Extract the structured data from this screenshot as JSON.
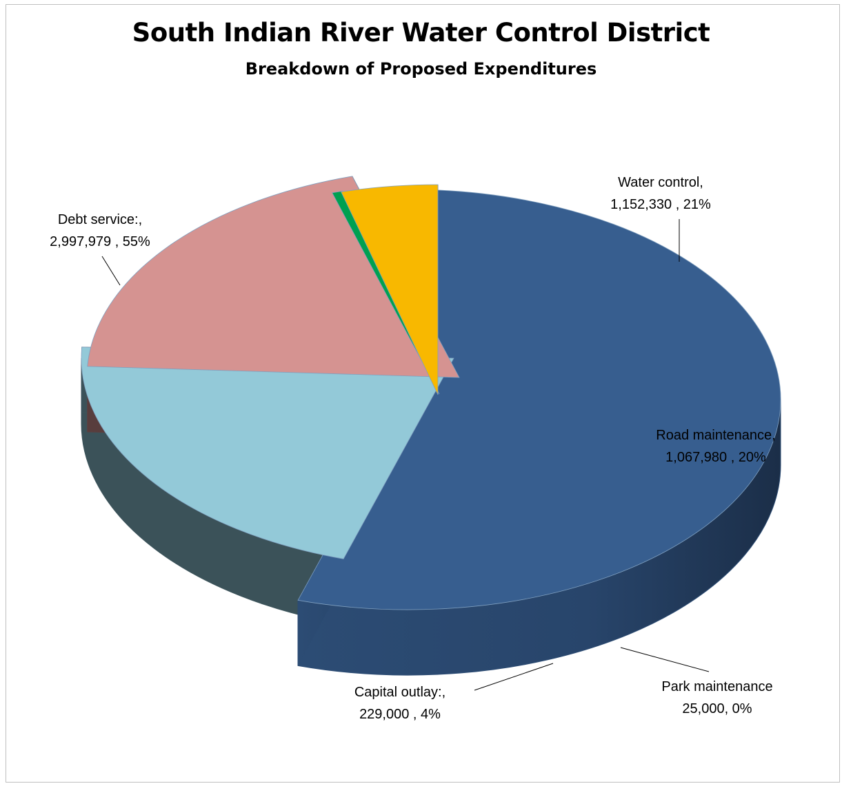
{
  "chart_data": {
    "type": "pie",
    "title": "South Indian River Water Control District",
    "subtitle": "Breakdown of Proposed  Expenditures",
    "style": "3d-exploded",
    "slices": [
      {
        "name": "Debt service:",
        "value": 2997979,
        "percent": 55,
        "color": "#375e8f",
        "label_line1": "Debt service:,",
        "label_line2": "2,997,979 , 55%"
      },
      {
        "name": "Water control",
        "value": 1152330,
        "percent": 21,
        "color": "#93c9d8",
        "label_line1": "Water control,",
        "label_line2": "1,152,330 , 21%"
      },
      {
        "name": "Road maintenance",
        "value": 1067980,
        "percent": 20,
        "color": "#d59391",
        "label_line1": "Road maintenance,",
        "label_line2": "1,067,980 , 20%"
      },
      {
        "name": "Park maintenance",
        "value": 25000,
        "percent": 0,
        "color": "#00a050",
        "label_line1": "Park maintenance",
        "label_line2": "25,000, 0%"
      },
      {
        "name": "Capital outlay:",
        "value": 229000,
        "percent": 4,
        "color": "#f8b800",
        "label_line1": "Capital outlay:,",
        "label_line2": "229,000 , 4%"
      }
    ]
  }
}
